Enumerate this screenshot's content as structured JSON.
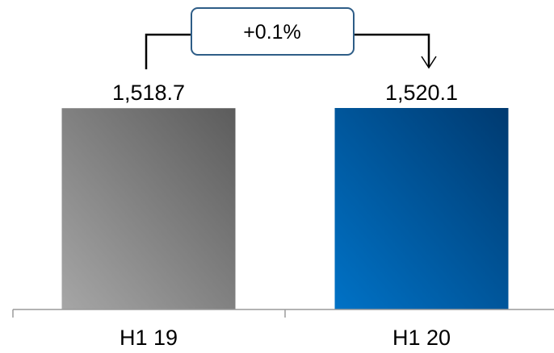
{
  "chart_data": {
    "type": "bar",
    "title": "",
    "xlabel": "",
    "ylabel": "",
    "categories": [
      "H1 19",
      "H1 20"
    ],
    "values": [
      1518.7,
      1520.1
    ],
    "value_labels": [
      "1,518.7",
      "1,520.1"
    ],
    "ylim": [
      0,
      1520.1
    ],
    "grid": false,
    "legend": "none",
    "annotation": {
      "text": "+0.1%",
      "from": "H1 19",
      "to": "H1 20"
    },
    "colors": {
      "bar_h1_19": [
        "#a6a6a6",
        "#5c5c5c"
      ],
      "bar_h1_20": [
        "#0072c6",
        "#003a70"
      ],
      "annotation_box_border": "#2e5d87",
      "connector": "#000000",
      "axis": "#9a9a9a",
      "text": "#000000"
    }
  }
}
